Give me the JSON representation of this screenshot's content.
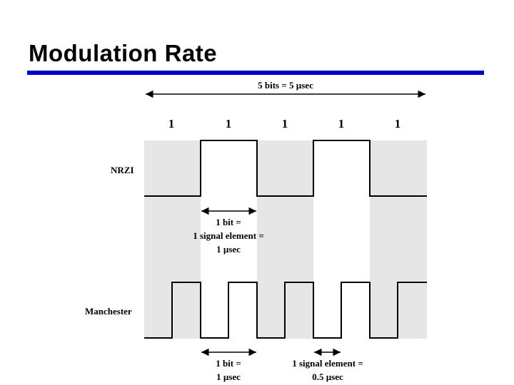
{
  "slide": {
    "title": "Modulation Rate",
    "accent_color": "#0000cc"
  },
  "diagram": {
    "span_label": "5 bits = 5 µsec",
    "bits": [
      "1",
      "1",
      "1",
      "1",
      "1"
    ],
    "nrzi_label": "NRZI",
    "manchester_label": "Manchester",
    "nrzi_annotation": [
      "1 bit =",
      "1 signal element =",
      "1 µsec"
    ],
    "manchester_bit_annotation": [
      "1 bit =",
      "1 µsec"
    ],
    "manchester_element_annotation": [
      "1 signal element =",
      "0.5 µsec"
    ],
    "shade_color": "#e6e6e6"
  }
}
